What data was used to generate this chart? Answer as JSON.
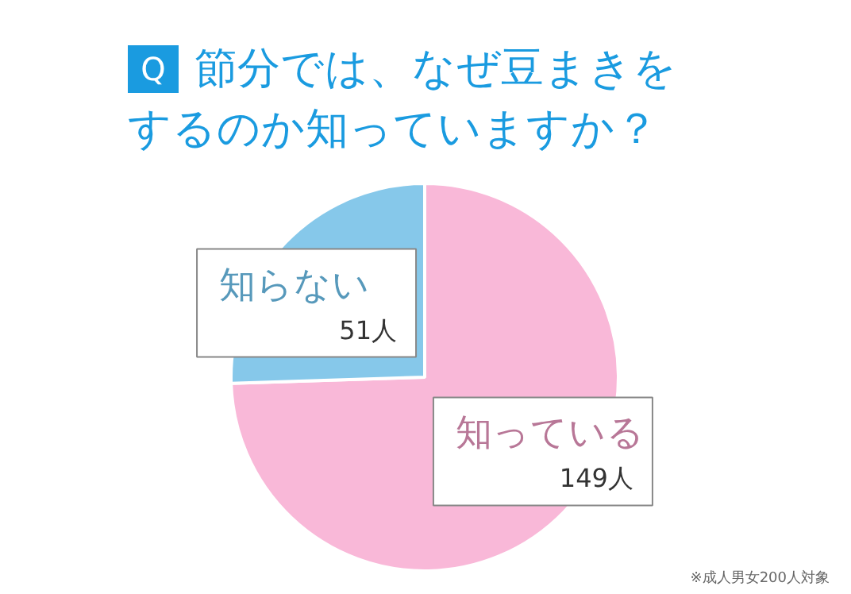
{
  "chart_data": {
    "type": "pie",
    "title": "節分では、なぜ豆まきをするのか知っていますか？",
    "categories": [
      "知っている",
      "知らない"
    ],
    "values": [
      149,
      51
    ],
    "colors": [
      "#f9b8d8",
      "#86c8ea"
    ],
    "value_labels": [
      "149人",
      "51人"
    ],
    "annotations": [
      "Q",
      "※成人男女200人対象"
    ]
  }
}
